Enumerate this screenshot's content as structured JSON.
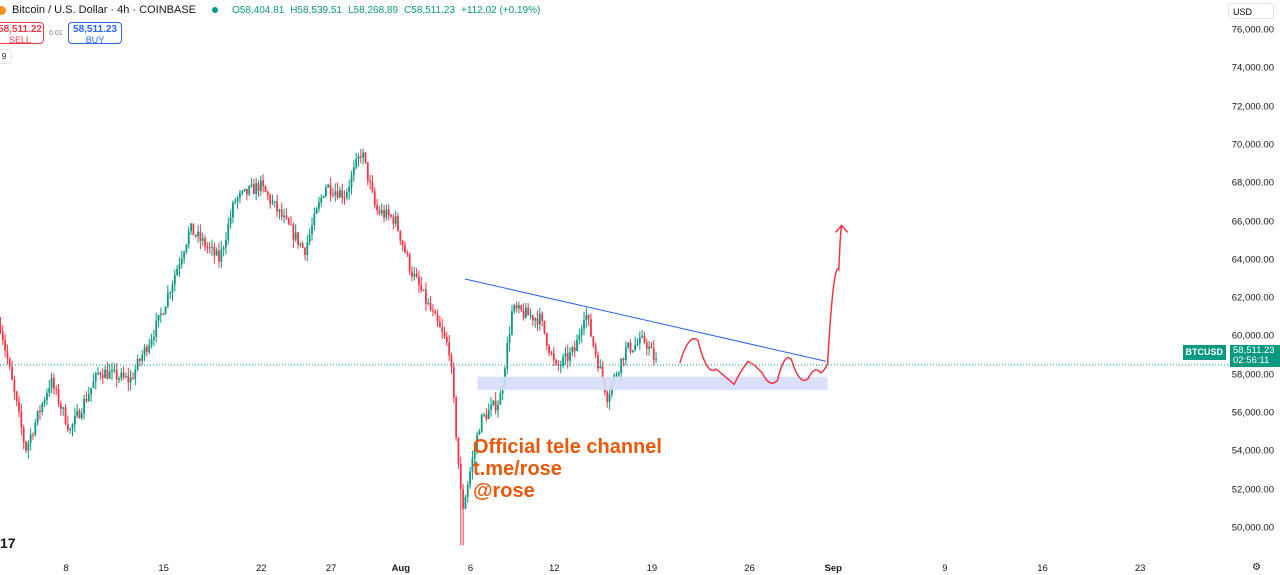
{
  "header": {
    "title": "Bitcoin / U.S. Dollar · 4h · COINBASE",
    "open": "O58,404.81",
    "high": "H58,539.51",
    "low": "L58,268.89",
    "close": "C58,511.23",
    "change": "+112.02 (+0.19%)"
  },
  "trade": {
    "sell_price": "58,511.22",
    "sell_label": "SELL",
    "spread": "0.01",
    "buy_price": "58,511.23",
    "buy_label": "BUY"
  },
  "indicator_badge": "9",
  "currency": "USD",
  "price_tag": {
    "symbol": "BTCUSD",
    "price": "58,511.23",
    "countdown": "02:56:11"
  },
  "annotation": {
    "line1": "Official tele channel",
    "line2": "t.me/rose",
    "line3": "@rose"
  },
  "logo": "17",
  "colors": {
    "up": "#089981",
    "down": "#f23645",
    "trend": "#2962ff",
    "zone": "#d6ddfa",
    "drawing": "#f23645",
    "text": "#e8590c"
  },
  "chart_data": {
    "type": "candlestick",
    "title": "Bitcoin / U.S. Dollar · 4h · COINBASE",
    "ylim": [
      49000,
      77000
    ],
    "yticks": [
      "76,000.00",
      "74,000.00",
      "72,000.00",
      "70,000.00",
      "68,000.00",
      "66,000.00",
      "64,000.00",
      "62,000.00",
      "60,000.00",
      "58,000.00",
      "56,000.00",
      "54,000.00",
      "52,000.00",
      "50,000.00"
    ],
    "ytick_values": [
      76000,
      74000,
      72000,
      70000,
      68000,
      66000,
      64000,
      62000,
      60000,
      58000,
      56000,
      54000,
      52000,
      50000
    ],
    "xticks": [
      {
        "label": "8",
        "day": 8
      },
      {
        "label": "15",
        "day": 15
      },
      {
        "label": "22",
        "day": 22
      },
      {
        "label": "27",
        "day": 27
      },
      {
        "label": "Aug",
        "day": 32,
        "bold": true
      },
      {
        "label": "6",
        "day": 37
      },
      {
        "label": "12",
        "day": 43
      },
      {
        "label": "19",
        "day": 50
      },
      {
        "label": "26",
        "day": 57
      },
      {
        "label": "Sep",
        "day": 63,
        "bold": true
      },
      {
        "label": "9",
        "day": 71
      },
      {
        "label": "16",
        "day": 78
      },
      {
        "label": "23",
        "day": 85
      }
    ],
    "x_unit": "days since Jul 0",
    "close_path": [
      [
        3.3,
        60600
      ],
      [
        5.1,
        54100
      ],
      [
        6.9,
        57700
      ],
      [
        8.3,
        55100
      ],
      [
        10.4,
        58200
      ],
      [
        12.6,
        57700
      ],
      [
        14.7,
        60900
      ],
      [
        16.9,
        65600
      ],
      [
        19.0,
        64000
      ],
      [
        20.1,
        67100
      ],
      [
        21.9,
        67900
      ],
      [
        25.1,
        64500
      ],
      [
        26.6,
        67900
      ],
      [
        28.0,
        67400
      ],
      [
        29.2,
        69700
      ],
      [
        30.2,
        66600
      ],
      [
        31.6,
        66100
      ],
      [
        32.7,
        63500
      ],
      [
        34.1,
        61400
      ],
      [
        35.5,
        59300
      ],
      [
        36.4,
        50900
      ],
      [
        37.7,
        55600
      ],
      [
        39.1,
        56700
      ],
      [
        40.0,
        61400
      ],
      [
        42.0,
        60900
      ],
      [
        43.1,
        58300
      ],
      [
        44.5,
        59300
      ],
      [
        45.2,
        61400
      ],
      [
        45.9,
        59300
      ],
      [
        46.8,
        56900
      ],
      [
        48.1,
        59300
      ],
      [
        49.5,
        59800
      ],
      [
        50.4,
        58511
      ]
    ],
    "current_price": 58511.23,
    "trendline": [
      [
        36.6,
        63000
      ],
      [
        62.5,
        58700
      ]
    ],
    "support_zone": {
      "from_day": 37.5,
      "to_day": 62.6,
      "low": 57200,
      "high": 57900
    },
    "projection": [
      [
        52.0,
        58600
      ],
      [
        53.3,
        59800
      ],
      [
        54.6,
        58300
      ],
      [
        55.9,
        57500
      ],
      [
        56.9,
        58700
      ],
      [
        57.9,
        58100
      ],
      [
        59.0,
        57700
      ],
      [
        60.0,
        58800
      ],
      [
        61.2,
        57800
      ],
      [
        62.1,
        58100
      ],
      [
        62.6,
        58600
      ],
      [
        63.4,
        63500
      ],
      [
        63.6,
        65800
      ]
    ]
  }
}
